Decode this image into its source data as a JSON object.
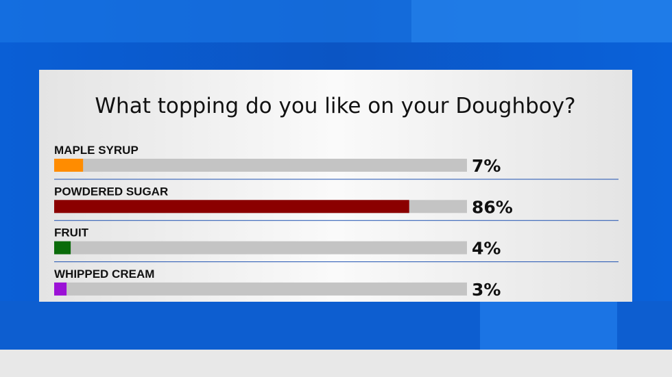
{
  "chart_data": {
    "type": "hbar",
    "title": "What topping do you like on your Doughboy?",
    "categories": [
      "MAPLE SYRUP",
      "POWDERED SUGAR",
      "FRUIT",
      "WHIPPED CREAM"
    ],
    "values": [
      7,
      86,
      4,
      3
    ],
    "value_labels": [
      "7%",
      "86%",
      "4%",
      "3%"
    ],
    "colors": [
      "#ff8c00",
      "#8b0000",
      "#0a6b0a",
      "#9b11d6"
    ],
    "xlim": [
      0,
      100
    ]
  }
}
